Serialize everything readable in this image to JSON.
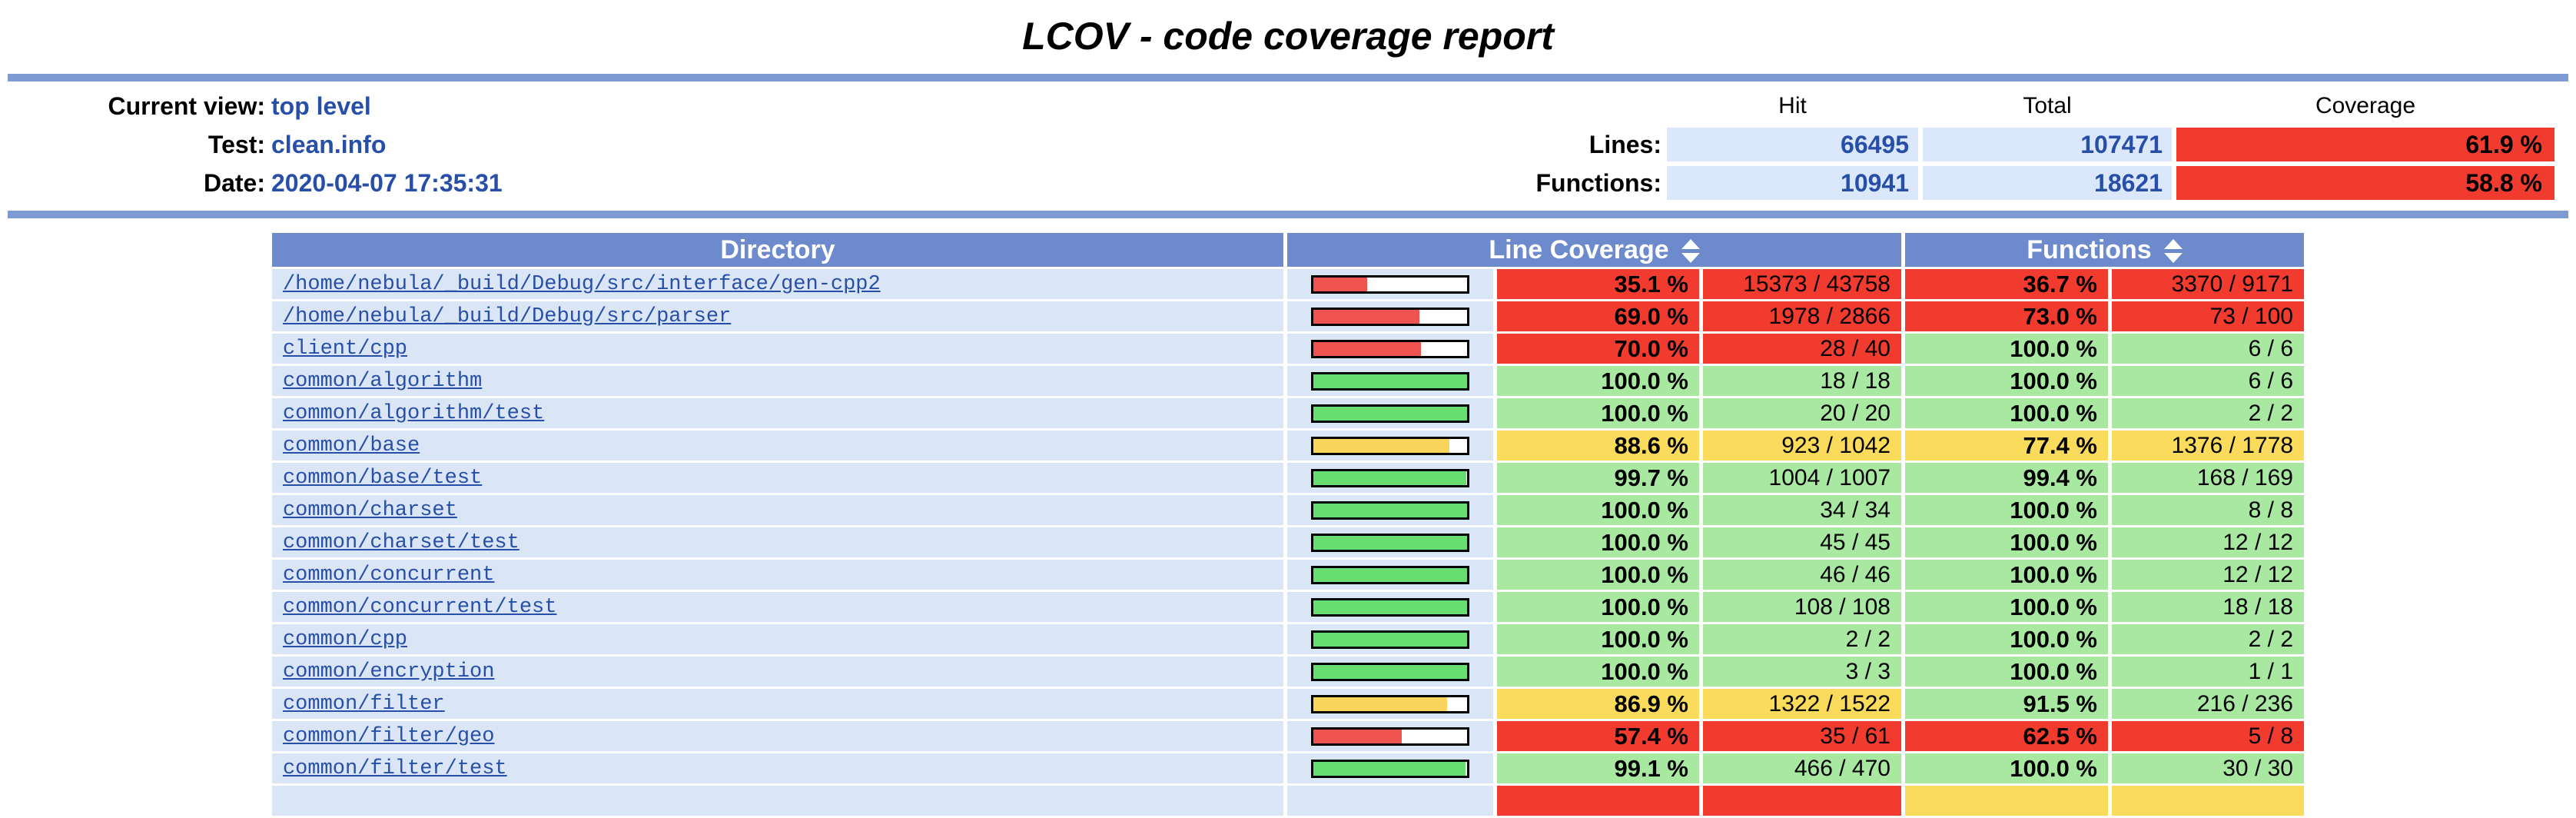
{
  "title": "LCOV - code coverage report",
  "header": {
    "rows": [
      {
        "label": "Current view:",
        "value": "top level"
      },
      {
        "label": "Test:",
        "value": "clean.info"
      },
      {
        "label": "Date:",
        "value": "2020-04-07 17:35:31"
      }
    ],
    "columns": [
      "Hit",
      "Total",
      "Coverage"
    ],
    "metrics": [
      {
        "label": "Lines:",
        "hit": "66495",
        "total": "107471",
        "coverage": "61.9 %",
        "level": "lo"
      },
      {
        "label": "Functions:",
        "hit": "10941",
        "total": "18621",
        "coverage": "58.8 %",
        "level": "lo"
      }
    ]
  },
  "table": {
    "headers": {
      "directory": "Directory",
      "line": "Line Coverage",
      "functions": "Functions"
    },
    "sort_icon": "sort-updown-icon",
    "rows": [
      {
        "dir": "/home/nebula/_build/Debug/src/interface/gen-cpp2",
        "bar_pct": 35.1,
        "line_level": "lo",
        "line_pct": "35.1 %",
        "line_num": "15373 / 43758",
        "fn_level": "lo",
        "fn_pct": "36.7 %",
        "fn_num": "3370 / 9171"
      },
      {
        "dir": "/home/nebula/_build/Debug/src/parser",
        "bar_pct": 69.0,
        "line_level": "lo",
        "line_pct": "69.0 %",
        "line_num": "1978 / 2866",
        "fn_level": "lo",
        "fn_pct": "73.0 %",
        "fn_num": "73 / 100"
      },
      {
        "dir": "client/cpp",
        "bar_pct": 70.0,
        "line_level": "lo",
        "line_pct": "70.0 %",
        "line_num": "28 / 40",
        "fn_level": "hi",
        "fn_pct": "100.0 %",
        "fn_num": "6 / 6"
      },
      {
        "dir": "common/algorithm",
        "bar_pct": 100,
        "line_level": "hi",
        "line_pct": "100.0 %",
        "line_num": "18 / 18",
        "fn_level": "hi",
        "fn_pct": "100.0 %",
        "fn_num": "6 / 6"
      },
      {
        "dir": "common/algorithm/test",
        "bar_pct": 100,
        "line_level": "hi",
        "line_pct": "100.0 %",
        "line_num": "20 / 20",
        "fn_level": "hi",
        "fn_pct": "100.0 %",
        "fn_num": "2 / 2"
      },
      {
        "dir": "common/base",
        "bar_pct": 88.6,
        "line_level": "med",
        "line_pct": "88.6 %",
        "line_num": "923 / 1042",
        "fn_level": "med",
        "fn_pct": "77.4 %",
        "fn_num": "1376 / 1778"
      },
      {
        "dir": "common/base/test",
        "bar_pct": 99.7,
        "line_level": "hi",
        "line_pct": "99.7 %",
        "line_num": "1004 / 1007",
        "fn_level": "hi",
        "fn_pct": "99.4 %",
        "fn_num": "168 / 169"
      },
      {
        "dir": "common/charset",
        "bar_pct": 100,
        "line_level": "hi",
        "line_pct": "100.0 %",
        "line_num": "34 / 34",
        "fn_level": "hi",
        "fn_pct": "100.0 %",
        "fn_num": "8 / 8"
      },
      {
        "dir": "common/charset/test",
        "bar_pct": 100,
        "line_level": "hi",
        "line_pct": "100.0 %",
        "line_num": "45 / 45",
        "fn_level": "hi",
        "fn_pct": "100.0 %",
        "fn_num": "12 / 12"
      },
      {
        "dir": "common/concurrent",
        "bar_pct": 100,
        "line_level": "hi",
        "line_pct": "100.0 %",
        "line_num": "46 / 46",
        "fn_level": "hi",
        "fn_pct": "100.0 %",
        "fn_num": "12 / 12"
      },
      {
        "dir": "common/concurrent/test",
        "bar_pct": 100,
        "line_level": "hi",
        "line_pct": "100.0 %",
        "line_num": "108 / 108",
        "fn_level": "hi",
        "fn_pct": "100.0 %",
        "fn_num": "18 / 18"
      },
      {
        "dir": "common/cpp",
        "bar_pct": 100,
        "line_level": "hi",
        "line_pct": "100.0 %",
        "line_num": "2 / 2",
        "fn_level": "hi",
        "fn_pct": "100.0 %",
        "fn_num": "2 / 2"
      },
      {
        "dir": "common/encryption",
        "bar_pct": 100,
        "line_level": "hi",
        "line_pct": "100.0 %",
        "line_num": "3 / 3",
        "fn_level": "hi",
        "fn_pct": "100.0 %",
        "fn_num": "1 / 1"
      },
      {
        "dir": "common/filter",
        "bar_pct": 86.9,
        "line_level": "med",
        "line_pct": "86.9 %",
        "line_num": "1322 / 1522",
        "fn_level": "hi",
        "fn_pct": "91.5 %",
        "fn_num": "216 / 236"
      },
      {
        "dir": "common/filter/geo",
        "bar_pct": 57.4,
        "line_level": "lo",
        "line_pct": "57.4 %",
        "line_num": "35 / 61",
        "fn_level": "lo",
        "fn_pct": "62.5 %",
        "fn_num": "5 / 8"
      },
      {
        "dir": "common/filter/test",
        "bar_pct": 99.1,
        "line_level": "hi",
        "line_pct": "99.1 %",
        "line_num": "466 / 470",
        "fn_level": "hi",
        "fn_pct": "100.0 %",
        "fn_num": "30 / 30"
      }
    ],
    "partial_row": {
      "line_level": "lo",
      "fn_level": "med"
    }
  },
  "colors": {
    "table_header_blue": "#6d8bcc",
    "ruler_blue": "#7e9ad2",
    "row_background": "#dae5f6",
    "summary_cell_background": "#dbe7fb",
    "link_blue": "#284fa8",
    "coverage_high_cell": "#a8e8a0",
    "coverage_medium_cell": "#fbdb5b",
    "coverage_low_cell": "#f23b2f",
    "bar_high": "#68de70",
    "bar_medium": "#f8d45c",
    "bar_low": "#ef5350"
  }
}
